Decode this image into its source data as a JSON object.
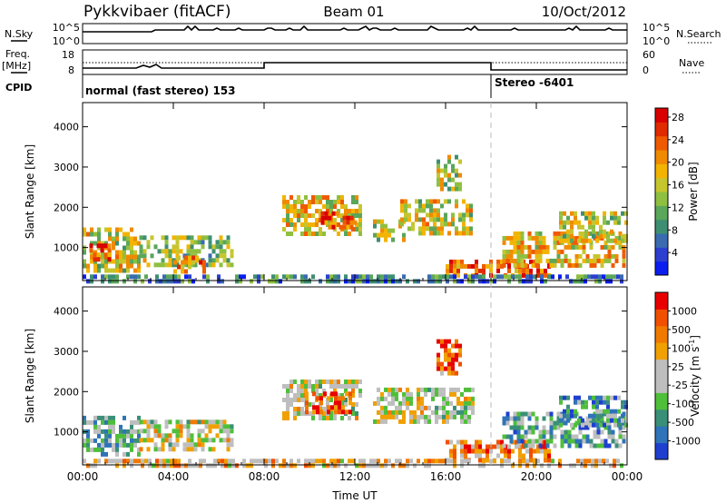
{
  "header": {
    "station": "Pykkvibaer (fitACF)",
    "beam": "Beam 01",
    "date": "10/Oct/2012"
  },
  "strips": {
    "nsky_label": "N.Sky",
    "nsky_ticks": [
      "10^5",
      "10^0"
    ],
    "nsearch_label": "N.Search",
    "nsearch_ticks": [
      "10^5",
      "10^0"
    ],
    "freq_label_1": "Freq.",
    "freq_label_2": "[MHz]",
    "freq_ticks": [
      "18",
      "8"
    ],
    "nave_label": "Nave",
    "nave_ticks": [
      "60",
      "0"
    ],
    "cpid_label": "CPID",
    "cpid_segments": [
      {
        "start_h": 0,
        "end_h": 18,
        "text": "normal (fast stereo) 153"
      },
      {
        "start_h": 18,
        "end_h": 24,
        "text": "Stereo -6401"
      }
    ]
  },
  "chart_data": [
    {
      "type": "heatmap",
      "panel": "power",
      "ylabel": "Slant Range [km]",
      "xlim_hours": [
        0,
        24
      ],
      "ylim_km": [
        180,
        4600
      ],
      "y_ticks": [
        "1000",
        "2000",
        "3000",
        "4000"
      ],
      "x_tick_hours": [
        0,
        4,
        8,
        12,
        16,
        20,
        24
      ],
      "colorbar": {
        "label": "Power [dB]",
        "tick_labels": [
          "4",
          "8",
          "12",
          "16",
          "20",
          "24",
          "28"
        ],
        "colors": [
          "#0b1ef0",
          "#2d3fd0",
          "#3a6bb0",
          "#3e8f72",
          "#5aa65a",
          "#8fbf40",
          "#c7c52e",
          "#f2b400",
          "#f08a00",
          "#ef5a00",
          "#e02a00",
          "#d80000"
        ]
      },
      "echo_regions": [
        {
          "t0": 0.0,
          "t1": 2.5,
          "r0": 400,
          "r1": 1500,
          "level": 0.55
        },
        {
          "t0": 2.5,
          "t1": 6.6,
          "r0": 600,
          "r1": 1300,
          "level": 0.45
        },
        {
          "t0": 4.0,
          "t1": 5.3,
          "r0": 450,
          "r1": 800,
          "level": 0.75
        },
        {
          "t0": 0.3,
          "t1": 1.2,
          "r0": 700,
          "r1": 1100,
          "level": 0.8
        },
        {
          "t0": 8.8,
          "t1": 12.2,
          "r0": 1300,
          "r1": 2300,
          "level": 0.6
        },
        {
          "t0": 10.5,
          "t1": 12.0,
          "r0": 1500,
          "r1": 1900,
          "level": 0.85
        },
        {
          "t0": 12.8,
          "t1": 14.2,
          "r0": 1200,
          "r1": 1700,
          "level": 0.5
        },
        {
          "t0": 14.0,
          "t1": 17.2,
          "r0": 1300,
          "r1": 2200,
          "level": 0.55
        },
        {
          "t0": 15.6,
          "t1": 16.7,
          "r0": 2500,
          "r1": 3300,
          "level": 0.5
        },
        {
          "t0": 16.0,
          "t1": 20.5,
          "r0": 300,
          "r1": 700,
          "level": 0.8
        },
        {
          "t0": 18.5,
          "t1": 23.8,
          "r0": 600,
          "r1": 1400,
          "level": 0.6
        },
        {
          "t0": 21.0,
          "t1": 24.0,
          "r0": 1200,
          "r1": 1900,
          "level": 0.5
        },
        {
          "t0": 0.0,
          "t1": 24.0,
          "r0": 180,
          "r1": 330,
          "level": 0.25
        }
      ]
    },
    {
      "type": "heatmap",
      "panel": "velocity",
      "ylabel": "Slant Range [km]",
      "xlabel": "Time UT",
      "xlim_hours": [
        0,
        24
      ],
      "ylim_km": [
        180,
        4600
      ],
      "y_ticks": [
        "1000",
        "2000",
        "3000",
        "4000"
      ],
      "x_tick_labels": [
        "00:00",
        "04:00",
        "08:00",
        "12:00",
        "16:00",
        "20:00",
        "00:00"
      ],
      "x_tick_hours": [
        0,
        4,
        8,
        12,
        16,
        20,
        24
      ],
      "colorbar": {
        "label": "Velocity [m s",
        "label_superscript": "-1",
        "label_close": "]",
        "tick_labels": [
          "1000",
          "500",
          "100",
          "25",
          "-25",
          "-100",
          "-500",
          "-1000"
        ],
        "colors": [
          "#1f3fd0",
          "#2f73b8",
          "#3a8f78",
          "#4fbf3a",
          "#bebebe",
          "#bebebe",
          "#f0a000",
          "#f07a00",
          "#f05000",
          "#e80000"
        ]
      },
      "echo_regions": [
        {
          "t0": 0.0,
          "t1": 2.5,
          "r0": 400,
          "r1": 1400,
          "level": 0.35
        },
        {
          "t0": 2.5,
          "t1": 6.6,
          "r0": 600,
          "r1": 1300,
          "level": 0.5
        },
        {
          "t0": 8.8,
          "t1": 12.2,
          "r0": 1300,
          "r1": 2300,
          "level": 0.5
        },
        {
          "t0": 9.8,
          "t1": 11.8,
          "r0": 1500,
          "r1": 2000,
          "level": 0.85
        },
        {
          "t0": 12.8,
          "t1": 17.2,
          "r0": 1200,
          "r1": 2100,
          "level": 0.5
        },
        {
          "t0": 15.6,
          "t1": 16.7,
          "r0": 2500,
          "r1": 3300,
          "level": 0.8
        },
        {
          "t0": 16.0,
          "t1": 20.5,
          "r0": 300,
          "r1": 800,
          "level": 0.72
        },
        {
          "t0": 18.5,
          "t1": 23.8,
          "r0": 600,
          "r1": 1500,
          "level": 0.3
        },
        {
          "t0": 21.0,
          "t1": 24.0,
          "r0": 1200,
          "r1": 1900,
          "level": 0.25
        },
        {
          "t0": 0.0,
          "t1": 24.0,
          "r0": 180,
          "r1": 330,
          "level": 0.6
        }
      ]
    }
  ]
}
